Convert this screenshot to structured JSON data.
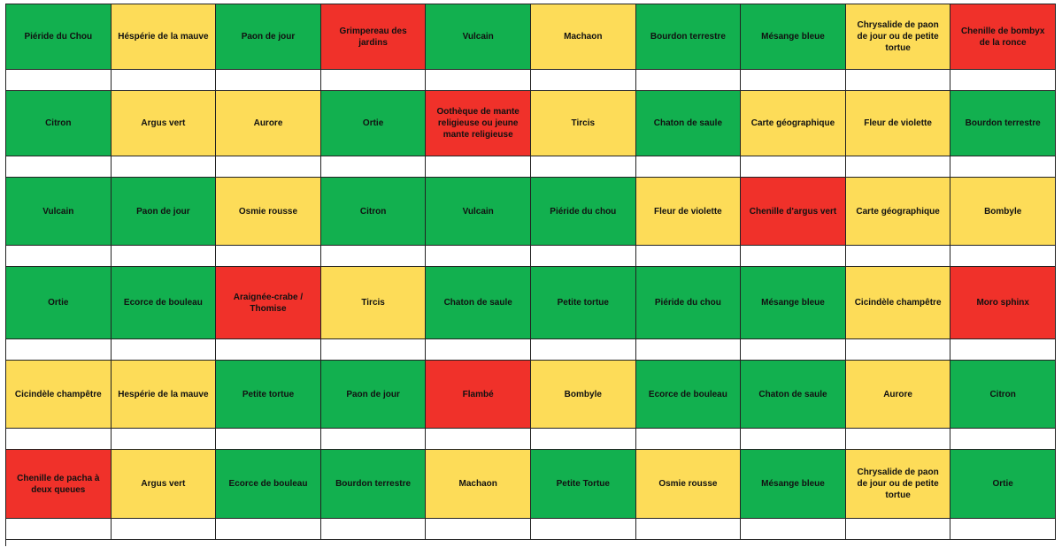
{
  "colors": {
    "green": "#12b04f",
    "yellow": "#fddc58",
    "red": "#f0312a",
    "blank": "#ffffff"
  },
  "rows": [
    [
      {
        "label": "Piéride du Chou",
        "color": "green"
      },
      {
        "label": "Héspérie de la mauve",
        "color": "yellow"
      },
      {
        "label": "Paon de jour",
        "color": "green"
      },
      {
        "label": "Grimpereau des jardins",
        "color": "red"
      },
      {
        "label": "Vulcain",
        "color": "green"
      },
      {
        "label": "Machaon",
        "color": "yellow"
      },
      {
        "label": "Bourdon terrestre",
        "color": "green"
      },
      {
        "label": "Mésange bleue",
        "color": "green"
      },
      {
        "label": "Chrysalide de paon de jour ou de petite tortue",
        "color": "yellow"
      },
      {
        "label": "Chenille de bombyx de la ronce",
        "color": "red"
      }
    ],
    [
      {
        "label": "Citron",
        "color": "green"
      },
      {
        "label": "Argus vert",
        "color": "yellow"
      },
      {
        "label": "Aurore",
        "color": "yellow"
      },
      {
        "label": "Ortie",
        "color": "green"
      },
      {
        "label": "Oothèque de mante religieuse ou jeune mante religieuse",
        "color": "red"
      },
      {
        "label": "Tircis",
        "color": "yellow"
      },
      {
        "label": "Chaton de saule",
        "color": "green"
      },
      {
        "label": "Carte géographique",
        "color": "yellow"
      },
      {
        "label": "Fleur de violette",
        "color": "yellow"
      },
      {
        "label": "Bourdon terrestre",
        "color": "green"
      }
    ],
    [
      {
        "label": "Vulcain",
        "color": "green"
      },
      {
        "label": "Paon de jour",
        "color": "green"
      },
      {
        "label": "Osmie rousse",
        "color": "yellow"
      },
      {
        "label": "Citron",
        "color": "green"
      },
      {
        "label": "Vulcain",
        "color": "green"
      },
      {
        "label": "Piéride du chou",
        "color": "green"
      },
      {
        "label": "Fleur de violette",
        "color": "yellow"
      },
      {
        "label": "Chenille d'argus vert",
        "color": "red"
      },
      {
        "label": "Carte géographique",
        "color": "yellow"
      },
      {
        "label": "Bombyle",
        "color": "yellow"
      }
    ],
    [
      {
        "label": "Ortie",
        "color": "green"
      },
      {
        "label": "Ecorce de bouleau",
        "color": "green"
      },
      {
        "label": "Araignée-crabe / Thomise",
        "color": "red"
      },
      {
        "label": "Tircis",
        "color": "yellow"
      },
      {
        "label": "Chaton de saule",
        "color": "green"
      },
      {
        "label": "Petite tortue",
        "color": "green"
      },
      {
        "label": "Piéride du chou",
        "color": "green"
      },
      {
        "label": "Mésange bleue",
        "color": "green"
      },
      {
        "label": "Cicindèle champêtre",
        "color": "yellow"
      },
      {
        "label": "Moro sphinx",
        "color": "red"
      }
    ],
    [
      {
        "label": "Cicindèle champêtre",
        "color": "yellow"
      },
      {
        "label": "Hespérie de la mauve",
        "color": "yellow"
      },
      {
        "label": "Petite tortue",
        "color": "green"
      },
      {
        "label": "Paon de jour",
        "color": "green"
      },
      {
        "label": "Flambé",
        "color": "red"
      },
      {
        "label": "Bombyle",
        "color": "yellow"
      },
      {
        "label": "Ecorce de bouleau",
        "color": "green"
      },
      {
        "label": "Chaton de saule",
        "color": "green"
      },
      {
        "label": "Aurore",
        "color": "yellow"
      },
      {
        "label": "Citron",
        "color": "green"
      }
    ],
    [
      {
        "label": "Chenille de pacha à deux queues",
        "color": "red"
      },
      {
        "label": "Argus vert",
        "color": "yellow"
      },
      {
        "label": "Ecorce de bouleau",
        "color": "green"
      },
      {
        "label": "Bourdon terrestre",
        "color": "green"
      },
      {
        "label": "Machaon",
        "color": "yellow"
      },
      {
        "label": "Petite Tortue",
        "color": "green"
      },
      {
        "label": "Osmie rousse",
        "color": "yellow"
      },
      {
        "label": "Mésange bleue",
        "color": "green"
      },
      {
        "label": "Chrysalide de paon de jour ou de petite tortue",
        "color": "yellow"
      },
      {
        "label": "Ortie",
        "color": "green"
      }
    ]
  ]
}
